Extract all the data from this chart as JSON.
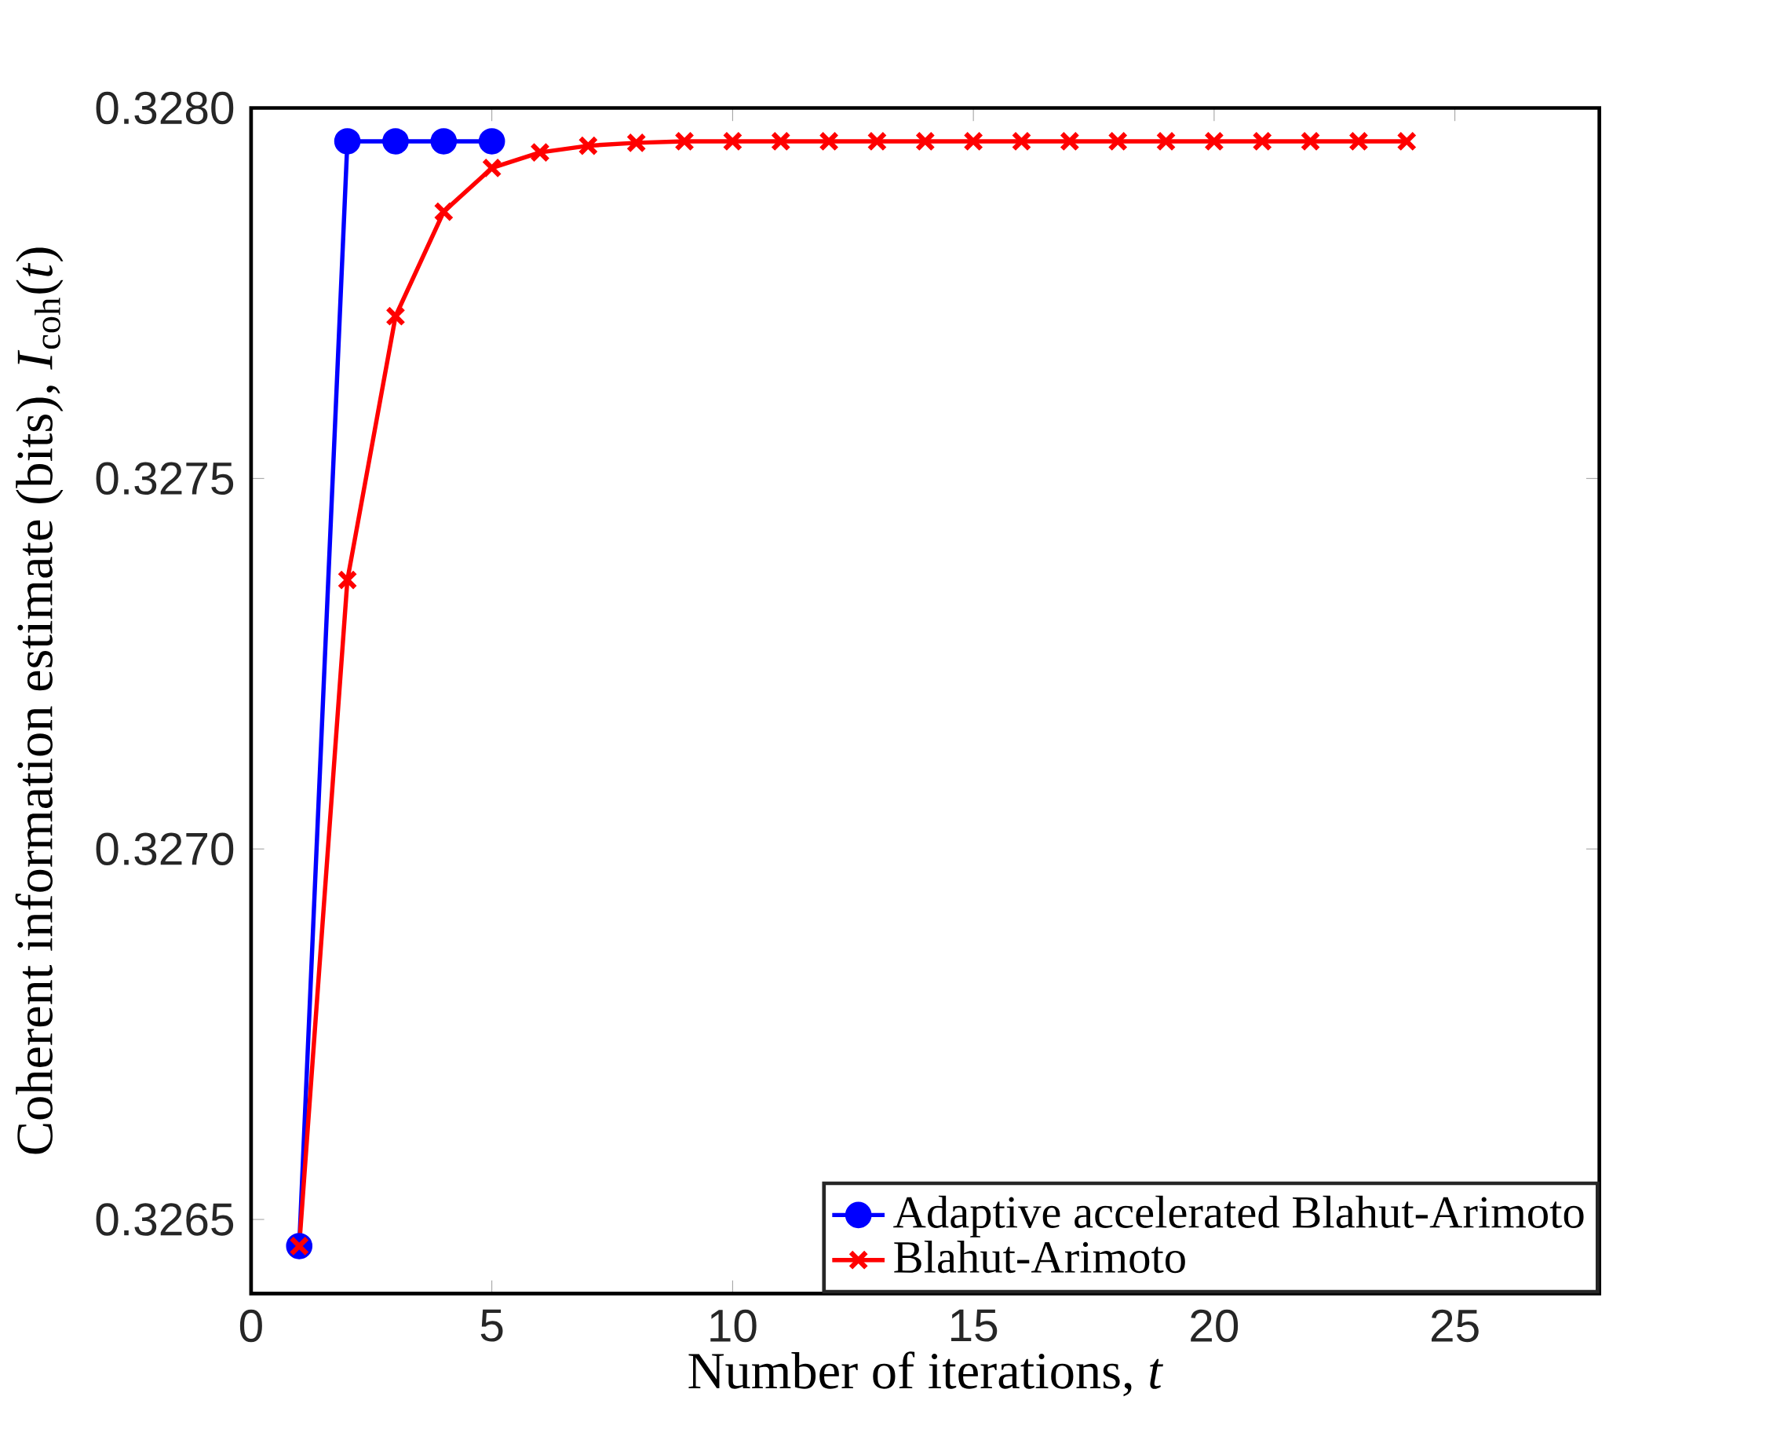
{
  "chart_data": {
    "type": "line",
    "xlabel": "Number of iterations, *t*",
    "ylabel": "Coherent information estimate (bits), *I*$_{coh}$(*t*)",
    "xlim": [
      0,
      28
    ],
    "xticks": [
      0,
      5,
      10,
      15,
      20,
      25
    ],
    "ylim": [
      0.3264,
      0.328
    ],
    "yticks": [
      {
        "value": 0.3265,
        "label": "0.3265"
      },
      {
        "value": 0.327,
        "label": "0.3270"
      },
      {
        "value": 0.3275,
        "label": "0.3275"
      },
      {
        "value": 0.328,
        "label": "0.3280"
      }
    ],
    "grid": false,
    "legend": "bottom right",
    "line_style": "solid",
    "series": [
      {
        "name": "Adaptive accelerated Blahut-Arimoto",
        "color": "#0000ff",
        "marker": "circle",
        "x": [
          1,
          2,
          3,
          4,
          5
        ],
        "values": [
          0.326464,
          0.327955,
          0.327955,
          0.327955,
          0.327955
        ]
      },
      {
        "name": "Blahut-Arimoto",
        "color": "#ff0000",
        "marker": "cross",
        "x": [
          1,
          2,
          3,
          4,
          5,
          6,
          7,
          8,
          9,
          10,
          11,
          12,
          13,
          14,
          15,
          16,
          17,
          18,
          19,
          20,
          21,
          22,
          23,
          24
        ],
        "values": [
          0.326464,
          0.327363,
          0.327719,
          0.32786,
          0.327919,
          0.32794,
          0.327949,
          0.327953,
          0.327955,
          0.327955,
          0.327955,
          0.327955,
          0.327955,
          0.327955,
          0.327955,
          0.327955,
          0.327955,
          0.327955,
          0.327955,
          0.327955,
          0.327955,
          0.327955,
          0.327955,
          0.327955
        ]
      }
    ]
  }
}
